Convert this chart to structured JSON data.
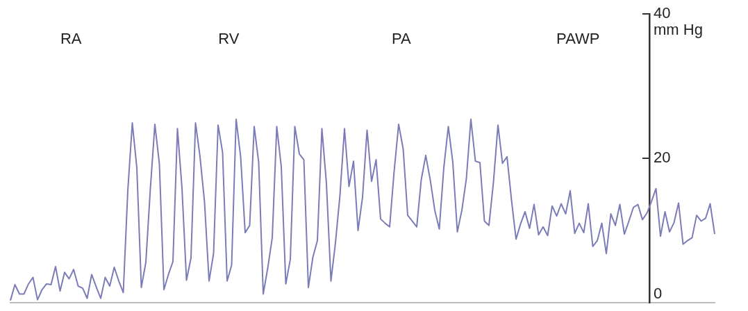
{
  "chart_data": {
    "type": "line",
    "ylabel": "mm Hg",
    "annotations": [
      "RA",
      "RV",
      "PA",
      "PAWP"
    ],
    "categories": [
      null,
      null,
      null,
      null,
      null,
      null,
      null,
      null,
      null,
      null,
      null,
      null,
      null,
      null,
      null,
      null,
      null,
      null,
      null,
      null,
      null,
      null,
      null,
      null,
      null,
      null,
      null,
      null,
      null,
      null,
      null,
      null,
      null,
      null,
      null,
      null,
      null,
      null,
      null,
      null,
      null,
      null,
      null,
      null,
      null,
      null,
      null,
      null,
      null,
      null,
      null,
      null,
      null,
      null,
      null,
      null,
      null,
      null,
      null,
      null,
      null,
      null,
      null,
      null,
      null,
      null,
      null,
      null,
      null,
      null,
      null,
      null,
      null,
      null,
      null,
      null,
      null,
      null,
      null,
      null,
      null,
      null,
      null,
      null,
      null,
      null,
      null,
      null,
      null,
      null,
      null,
      null,
      null,
      null,
      null,
      null,
      null,
      null,
      null,
      null,
      null,
      null,
      null,
      null,
      null,
      null,
      null,
      null,
      null,
      null,
      null,
      null,
      null,
      null,
      null,
      null,
      null,
      null,
      null,
      null,
      null,
      null,
      null,
      null,
      null,
      null,
      null,
      null,
      null,
      null,
      null,
      null,
      null,
      null,
      null,
      null,
      null,
      null,
      null,
      null,
      null,
      null,
      null,
      null,
      null,
      null,
      null,
      null,
      null,
      null,
      null,
      null,
      null,
      null,
      null,
      null,
      null
    ],
    "series": [
      {
        "color": "#7b7bb8",
        "values": [
          0.3,
          2.5,
          1.2,
          1.2,
          2.6,
          3.5,
          0.4,
          1.8,
          2.6,
          2.5,
          5,
          1.6,
          4.2,
          3.3,
          4.6,
          2.3,
          2,
          0.6,
          3.9,
          2.2,
          0.6,
          3.5,
          2.3,
          4.9,
          3,
          1.4,
          15.5,
          24.9,
          18.7,
          2.1,
          5.6,
          15.8,
          24.7,
          19.2,
          1.8,
          3.9,
          5.7,
          24.1,
          15.9,
          3.1,
          6.2,
          24.9,
          20.2,
          13.9,
          3,
          6.8,
          24.6,
          20.8,
          3,
          5.2,
          25.4,
          20.2,
          9.7,
          10.7,
          24.4,
          19.4,
          1.2,
          4.8,
          9,
          24.4,
          18.8,
          2.6,
          6,
          24.4,
          20.6,
          19.8,
          2.1,
          6.3,
          8.6,
          24.1,
          16.5,
          3,
          8.3,
          14.9,
          24.1,
          16.1,
          19.6,
          10,
          14.6,
          23.9,
          16.8,
          19.8,
          11.6,
          11,
          10.5,
          18.2,
          24.7,
          21.3,
          12.1,
          11.3,
          10.5,
          17,
          20.4,
          17,
          12.8,
          10.2,
          18.7,
          24.4,
          19.4,
          9.8,
          12.8,
          17.2,
          25.4,
          19.6,
          19.4,
          11.3,
          10.7,
          16.7,
          24.6,
          19.3,
          20.2,
          14.2,
          8.8,
          10.9,
          12.6,
          10.3,
          13.6,
          9.4,
          10.5,
          9.3,
          13.4,
          12,
          13.7,
          12.3,
          15.5,
          9.6,
          11,
          9.7,
          13.7,
          7.8,
          8.6,
          11,
          6.8,
          12.3,
          10.7,
          13.6,
          9.5,
          11.3,
          13.2,
          13.6,
          11.5,
          12.4,
          14,
          15.8,
          9.2,
          12.6,
          9.8,
          11.1,
          13.8,
          8.1,
          8.6,
          9,
          12.1,
          11.3,
          11.7,
          13.7,
          9.5
        ]
      }
    ],
    "ylim": [
      0,
      40
    ],
    "yticks": [
      0,
      20,
      40
    ],
    "grid": false,
    "legend": false,
    "marker": "none",
    "line_style": "solid"
  }
}
